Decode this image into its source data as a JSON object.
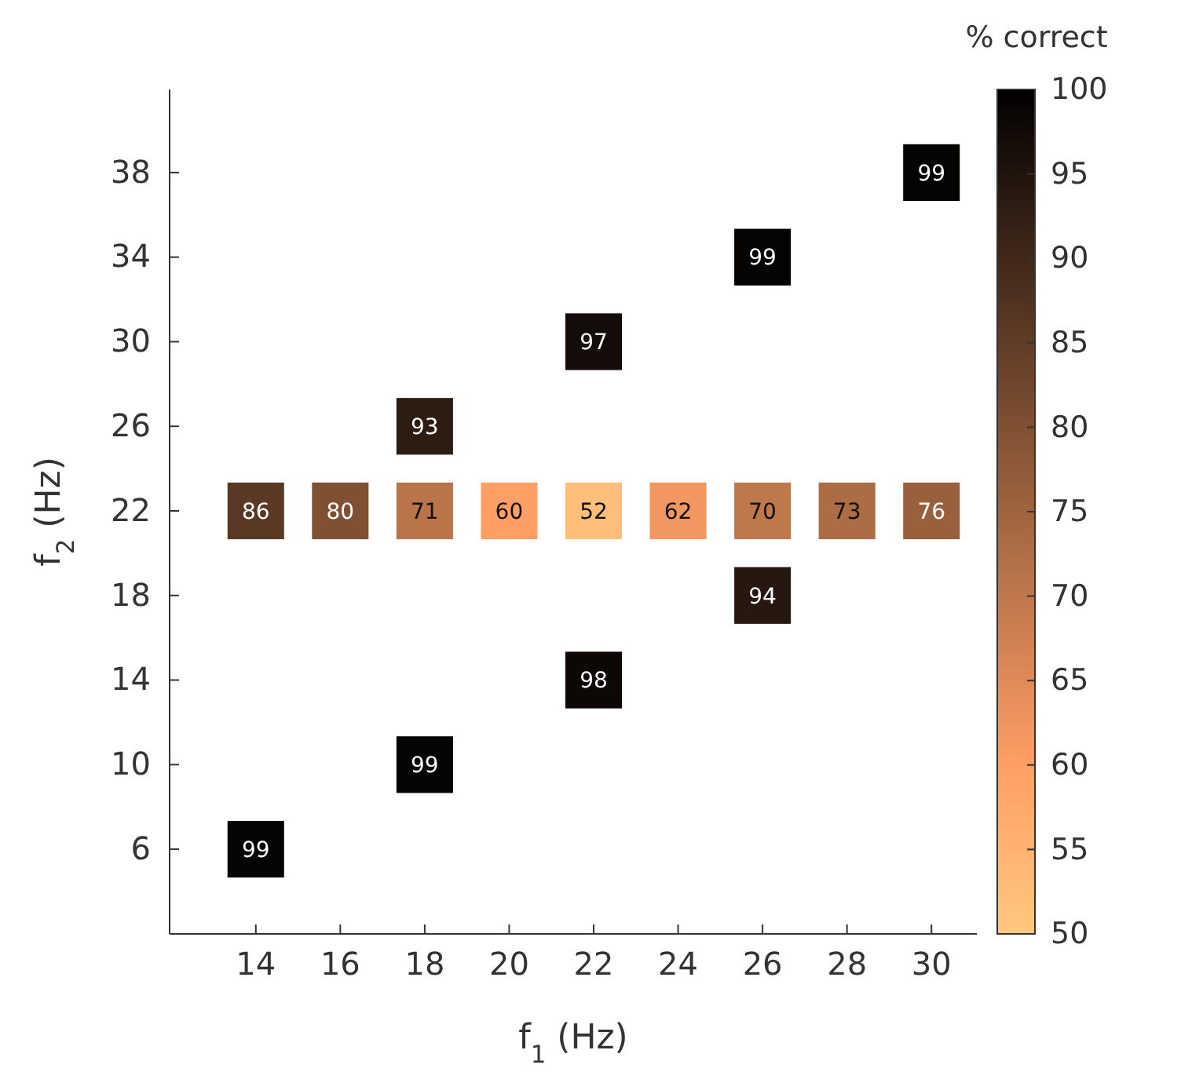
{
  "chart_data": {
    "type": "heatmap",
    "xlabel": "f$_{1}$ (Hz)",
    "ylabel": "f$_{2}$ (Hz)",
    "clabel": "% correct",
    "data_labels": true,
    "categories": [
      "14",
      "16",
      "18",
      "20",
      "22",
      "24",
      "26",
      "28",
      "30"
    ],
    "y_categories": [
      "38",
      "34",
      "30",
      "26",
      "22",
      "18",
      "14",
      "10",
      "6"
    ],
    "cells": [
      [
        null,
        null,
        null,
        null,
        null,
        null,
        null,
        null,
        99
      ],
      [
        null,
        null,
        null,
        null,
        null,
        null,
        99,
        null,
        null
      ],
      [
        null,
        null,
        null,
        null,
        97,
        null,
        null,
        null,
        null
      ],
      [
        null,
        null,
        93,
        null,
        null,
        null,
        null,
        null,
        null
      ],
      [
        86,
        80,
        71,
        60,
        52,
        62,
        70,
        73,
        76
      ],
      [
        null,
        null,
        null,
        null,
        null,
        null,
        94,
        null,
        null
      ],
      [
        null,
        null,
        null,
        null,
        98,
        null,
        null,
        null,
        null
      ],
      [
        null,
        null,
        99,
        null,
        null,
        null,
        null,
        null,
        null
      ],
      [
        99,
        null,
        null,
        null,
        null,
        null,
        null,
        null,
        null
      ]
    ],
    "clim": [
      50,
      100
    ],
    "cticks": [
      50,
      55,
      60,
      65,
      70,
      75,
      80,
      85,
      90,
      95,
      100
    ]
  }
}
